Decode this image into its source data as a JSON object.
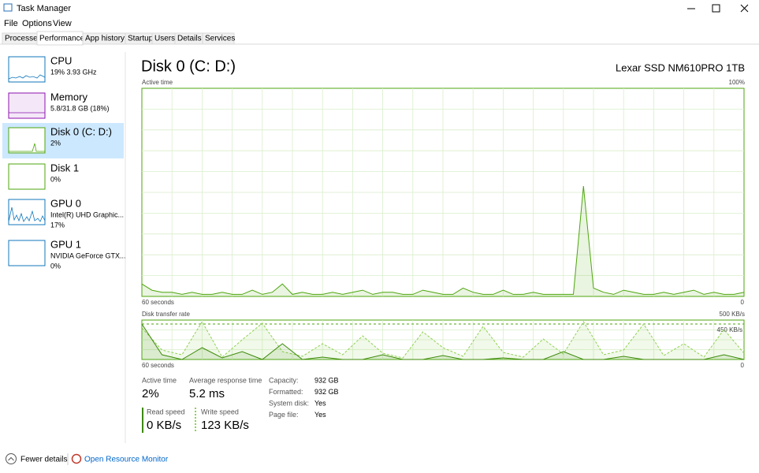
{
  "window": {
    "title": "Task Manager"
  },
  "menu": [
    "File",
    "Options",
    "View"
  ],
  "tabs": [
    "Processes",
    "Performance",
    "App history",
    "Startup",
    "Users",
    "Details",
    "Services"
  ],
  "sidebar": [
    {
      "name": "CPU",
      "detail": "19% 3.93 GHz"
    },
    {
      "name": "Memory",
      "detail": "5.8/31.8 GB (18%)"
    },
    {
      "name": "Disk 0 (C: D:)",
      "detail": "2%"
    },
    {
      "name": "Disk 1",
      "detail": "0%"
    },
    {
      "name": "GPU 0",
      "detail": "Intel(R) UHD Graphic...",
      "detail2": "17%"
    },
    {
      "name": "GPU 1",
      "detail": "NVIDIA GeForce GTX...",
      "detail2": "0%"
    }
  ],
  "main": {
    "title": "Disk 0 (C: D:)",
    "model": "Lexar SSD NM610PRO 1TB"
  },
  "active_time_graph": {
    "label": "Active time",
    "ylim": [
      0,
      100
    ],
    "yticks": [
      {
        "value": 100,
        "label": "100%"
      }
    ],
    "xlim": [
      60,
      0
    ],
    "xticks": [
      {
        "value": 60,
        "label": "60 seconds"
      },
      0
    ],
    "color": "#4da60c",
    "values": [
      6,
      3,
      2,
      2,
      1,
      2,
      1,
      1,
      2,
      1,
      1,
      3,
      1,
      2,
      6,
      1,
      2,
      1,
      1,
      2,
      1,
      2,
      3,
      1,
      2,
      2,
      1,
      1,
      3,
      2,
      1,
      1,
      4,
      2,
      1,
      1,
      3,
      1,
      1,
      2,
      1,
      1,
      1,
      1,
      53,
      4,
      2,
      1,
      3,
      2,
      1,
      1,
      2,
      1,
      2,
      3,
      1,
      2,
      1,
      1,
      2
    ]
  },
  "transfer_graph": {
    "label": "Disk transfer rate",
    "ylim": [
      0,
      500
    ],
    "yticks": [
      {
        "value": 500,
        "label": "500 KB/s"
      }
    ],
    "scale_marker": {
      "value": 450,
      "label": "450 KB/s"
    },
    "xlim": [
      60,
      0
    ],
    "xticks": [
      {
        "value": 60,
        "label": "60 seconds"
      },
      0
    ],
    "series": [
      {
        "name": "Write speed",
        "color": "#8fd14f",
        "values": [
          400,
          120,
          60,
          480,
          30,
          250,
          460,
          100,
          40,
          200,
          60,
          300,
          80,
          20,
          350,
          150,
          40,
          420,
          90,
          30,
          260,
          70,
          480,
          60,
          120,
          450,
          50,
          200,
          30,
          380,
          80
        ]
      },
      {
        "name": "Read speed",
        "color": "#3d8a0a",
        "values": [
          450,
          60,
          0,
          150,
          20,
          100,
          0,
          200,
          0,
          30,
          0,
          0,
          60,
          0,
          0,
          50,
          0,
          0,
          20,
          0,
          0,
          100,
          0,
          0,
          40,
          0,
          0,
          0,
          0,
          60,
          0
        ]
      }
    ]
  },
  "stats": [
    {
      "label": "Active time",
      "value": "2%"
    },
    {
      "label": "Average response time",
      "value": "5.2 ms"
    }
  ],
  "properties": [
    [
      "Capacity:",
      "932 GB"
    ],
    [
      "Formatted:",
      "932 GB"
    ],
    [
      "System disk:",
      "Yes"
    ],
    [
      "Page file:",
      "Yes"
    ]
  ],
  "speeds": [
    {
      "label": "Read speed",
      "value": "0 KB/s"
    },
    {
      "label": "Write speed",
      "value": "123 KB/s"
    }
  ],
  "footer": {
    "fewer": "Fewer details",
    "monitor": "Open Resource Monitor"
  }
}
